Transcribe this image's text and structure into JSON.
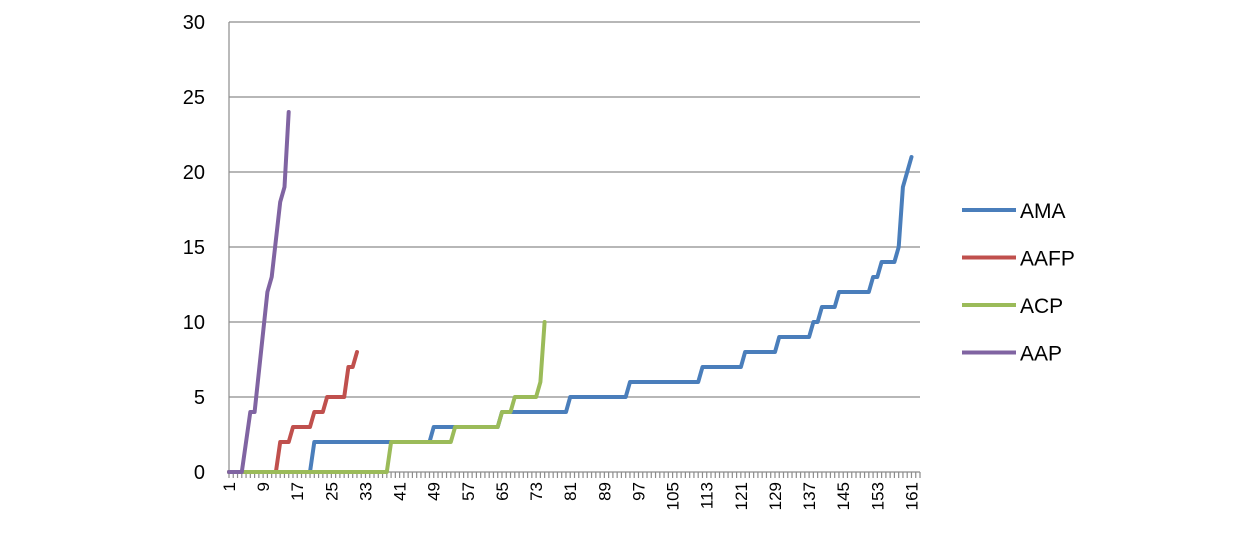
{
  "chart_data": {
    "type": "line",
    "title": "",
    "xlabel": "",
    "ylabel": "",
    "xlim": [
      1,
      163
    ],
    "ylim": [
      0,
      30
    ],
    "y_ticks": [
      "0",
      "5",
      "10",
      "15",
      "20",
      "25",
      "30"
    ],
    "x_ticks": [
      "1",
      "9",
      "17",
      "25",
      "33",
      "41",
      "49",
      "57",
      "65",
      "73",
      "81",
      "89",
      "97",
      "105",
      "113",
      "121",
      "129",
      "137",
      "145",
      "153",
      "161"
    ],
    "grid": "horizontal",
    "legend_position": "right",
    "series": [
      {
        "name": "AMA",
        "color": "#4a7ebb",
        "points": [
          [
            1,
            0
          ],
          [
            20,
            0
          ],
          [
            21,
            2
          ],
          [
            48,
            2
          ],
          [
            49,
            3
          ],
          [
            64,
            3
          ],
          [
            65,
            4
          ],
          [
            80,
            4
          ],
          [
            81,
            5
          ],
          [
            94,
            5
          ],
          [
            95,
            6
          ],
          [
            111,
            6
          ],
          [
            112,
            7
          ],
          [
            121,
            7
          ],
          [
            122,
            8
          ],
          [
            129,
            8
          ],
          [
            130,
            9
          ],
          [
            137,
            9
          ],
          [
            138,
            10
          ],
          [
            139,
            10
          ],
          [
            140,
            11
          ],
          [
            143,
            11
          ],
          [
            144,
            12
          ],
          [
            151,
            12
          ],
          [
            152,
            13
          ],
          [
            153,
            13
          ],
          [
            154,
            14
          ],
          [
            157,
            14
          ],
          [
            158,
            15
          ],
          [
            159,
            19
          ],
          [
            161,
            21
          ]
        ]
      },
      {
        "name": "AAFP",
        "color": "#c0504d",
        "points": [
          [
            1,
            0
          ],
          [
            12,
            0
          ],
          [
            13,
            2
          ],
          [
            15,
            2
          ],
          [
            16,
            3
          ],
          [
            20,
            3
          ],
          [
            21,
            4
          ],
          [
            23,
            4
          ],
          [
            24,
            5
          ],
          [
            28,
            5
          ],
          [
            29,
            7
          ],
          [
            30,
            7
          ],
          [
            31,
            8
          ]
        ]
      },
      {
        "name": "ACP",
        "color": "#9bbb59",
        "points": [
          [
            1,
            0
          ],
          [
            38,
            0
          ],
          [
            39,
            2
          ],
          [
            53,
            2
          ],
          [
            54,
            3
          ],
          [
            64,
            3
          ],
          [
            65,
            4
          ],
          [
            67,
            4
          ],
          [
            68,
            5
          ],
          [
            73,
            5
          ],
          [
            74,
            6
          ],
          [
            75,
            10
          ]
        ]
      },
      {
        "name": "AAP",
        "color": "#8064a2",
        "points": [
          [
            1,
            0
          ],
          [
            4,
            0
          ],
          [
            6,
            4
          ],
          [
            7,
            4
          ],
          [
            10,
            12
          ],
          [
            11,
            13
          ],
          [
            13,
            18
          ],
          [
            14,
            19
          ],
          [
            15,
            24
          ]
        ]
      }
    ]
  }
}
